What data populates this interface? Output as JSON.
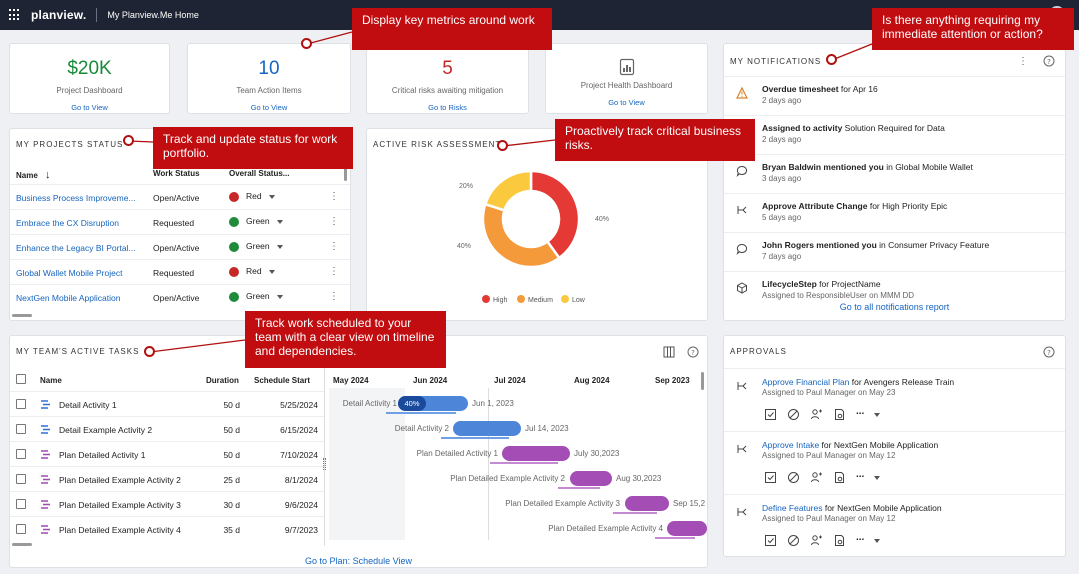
{
  "header": {
    "brand": "planview.",
    "app_title": "My Planview.Me Home"
  },
  "kpis": [
    {
      "value": "$20K",
      "label": "Project Dashboard",
      "link": "Go to View",
      "color": "#1a8a3a"
    },
    {
      "value": "10",
      "label": "Team Action Items",
      "link": "Go to View",
      "color": "#1565c0"
    },
    {
      "value": "5",
      "label": "Critical risks awaiting mitigation",
      "link": "Go to Risks",
      "color": "#c62828"
    },
    {
      "value": "",
      "label": "Project Health Dashboard",
      "link": "Go to View",
      "icon": "dashboard-icon"
    }
  ],
  "callouts": {
    "metrics": "Display key metrics around work",
    "notifications": "Is there anything requiring my immediate attention or action?",
    "projects": "Track and update status for work portfolio.",
    "risks": "Proactively track critical business risks.",
    "tasks": "Track work scheduled to your team with a clear view on timeline and dependencies."
  },
  "projects": {
    "title": "MY PROJECTS STATUS",
    "cols": {
      "name": "Name",
      "work": "Work Status",
      "overall": "Overall Status..."
    },
    "rows": [
      {
        "name": "Business Process Improveme...",
        "work": "Open/Active",
        "status": "Red",
        "color": "#c62828"
      },
      {
        "name": "Embrace the CX Disruption",
        "work": "Requested",
        "status": "Green",
        "color": "#1f8a3a"
      },
      {
        "name": "Enhance the Legacy BI Portal...",
        "work": "Open/Active",
        "status": "Green",
        "color": "#1f8a3a"
      },
      {
        "name": "Global Wallet Mobile Project",
        "work": "Requested",
        "status": "Red",
        "color": "#c62828"
      },
      {
        "name": "NextGen Mobile Application",
        "work": "Open/Active",
        "status": "Green",
        "color": "#1f8a3a"
      }
    ]
  },
  "risk": {
    "title": "ACTIVE RISK ASSESSMENT",
    "chart_data": {
      "type": "pie",
      "categories": [
        "High",
        "Medium",
        "Low"
      ],
      "values": [
        40,
        40,
        20
      ],
      "colors": [
        "#e53935",
        "#f59a3a",
        "#fbc93d"
      ],
      "labels": [
        "40%",
        "40%",
        "20%"
      ],
      "legend": "bottom"
    }
  },
  "notifications": {
    "title": "MY NOTIFICATIONS",
    "footer": "Go to all notifications report",
    "items": [
      {
        "bold": "Overdue timesheet",
        "rest": " for Apr 16",
        "date": "2 days ago",
        "icon": "warning-icon"
      },
      {
        "bold": "Assigned to activity",
        "rest": " Solution Required for Data",
        "date": "2 days ago",
        "icon": "none"
      },
      {
        "bold": "Bryan Baldwin mentioned you",
        "rest": " in Global Mobile Wallet",
        "date": "3 days ago",
        "icon": "comment-icon"
      },
      {
        "bold": "Approve Attribute Change",
        "rest": " for High Priority Epic",
        "date": "5 days ago",
        "icon": "workflow-icon"
      },
      {
        "bold": "John Rogers mentioned you",
        "rest": " in Consumer Privacy Feature",
        "date": "7 days ago",
        "icon": "comment-icon"
      },
      {
        "bold": "LifecycleStep",
        "rest": " for ProjectName",
        "date": "Assigned to ResponsibleUser on MMM DD",
        "icon": "cube-icon"
      }
    ]
  },
  "tasks": {
    "title": "MY TEAM'S ACTIVE TASKS",
    "cols": {
      "name": "Name",
      "duration": "Duration",
      "start": "Schedule Start"
    },
    "months": [
      "May 2024",
      "Jun 2024",
      "Jul 2024",
      "Aug 2024",
      "Sep 2023"
    ],
    "footer": "Go to Plan: Schedule View",
    "rows": [
      {
        "name": "Detail Activity 1",
        "duration": "50 d",
        "start": "5/25/2024",
        "type": "detail",
        "bar_label": "Detail Activity 1",
        "end_label": "Jun 1, 2023",
        "progress": "40%"
      },
      {
        "name": "Detail Example Activity 2",
        "duration": "50 d",
        "start": "6/15/2024",
        "type": "detail",
        "bar_label": "Detail Activity 2",
        "end_label": "Jul 14, 2023",
        "progress": ""
      },
      {
        "name": "Plan Detailed Activity 1",
        "duration": "50 d",
        "start": "7/10/2024",
        "type": "plan",
        "bar_label": "Plan Detailed Activity 1",
        "end_label": "July 30,2023",
        "progress": ""
      },
      {
        "name": "Plan Detailed Example Activity 2",
        "duration": "25 d",
        "start": "8/1/2024",
        "type": "plan",
        "bar_label": "Plan Detailed Example Activity 2",
        "end_label": "Aug 30,2023",
        "progress": ""
      },
      {
        "name": "Plan Detailed Example Activity 3",
        "duration": "30 d",
        "start": "9/6/2024",
        "type": "plan",
        "bar_label": "Plan Detailed Example Activity 3",
        "end_label": "Sep 15,2",
        "progress": ""
      },
      {
        "name": "Plan Detailed Example Activity 4",
        "duration": "35 d",
        "start": "9/7/2023",
        "type": "plan",
        "bar_label": "Plan Detailed Example Activity 4",
        "end_label": "",
        "progress": ""
      }
    ]
  },
  "approvals": {
    "title": "APPROVALS",
    "items": [
      {
        "link": "Approve Financial Plan",
        "rest": " for Avengers Release Train",
        "sub": "Assigned to Paul Manager on May 23"
      },
      {
        "link": "Approve Intake",
        "rest": " for NextGen Mobile Application",
        "sub": "Assigned to Paul Manager on May 12"
      },
      {
        "link": "Define Features",
        "rest": " for NextGen Mobile Application",
        "sub": "Assigned to Paul Manager on May 12"
      }
    ],
    "more": "..."
  }
}
